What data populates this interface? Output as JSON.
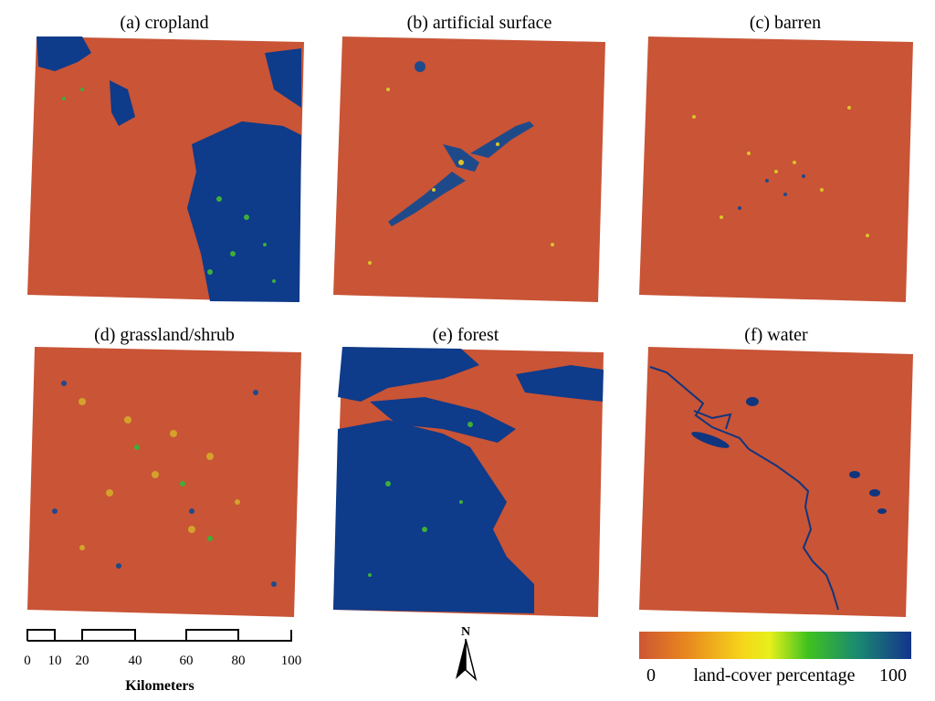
{
  "panels": [
    {
      "title": "(a) cropland"
    },
    {
      "title": "(b) artificial surface"
    },
    {
      "title": "(c) barren"
    },
    {
      "title": "(d) grassland/shrub"
    },
    {
      "title": "(e) forest"
    },
    {
      "title": "(f) water"
    }
  ],
  "scalebar": {
    "ticks": [
      "0",
      "10",
      "20",
      "40",
      "60",
      "80",
      "100"
    ],
    "unit": "Kilometers"
  },
  "north_arrow": {
    "label": "N"
  },
  "legend": {
    "min_label": "0",
    "title": "land-cover percentage",
    "max_label": "100",
    "colors": [
      "#cd5634",
      "#e8861e",
      "#f6d61a",
      "#e6f01c",
      "#3fc21e",
      "#1a8a70",
      "#14338c"
    ]
  },
  "colors": {
    "background_class": "#c95436",
    "high_class": "#0e3b8a"
  }
}
